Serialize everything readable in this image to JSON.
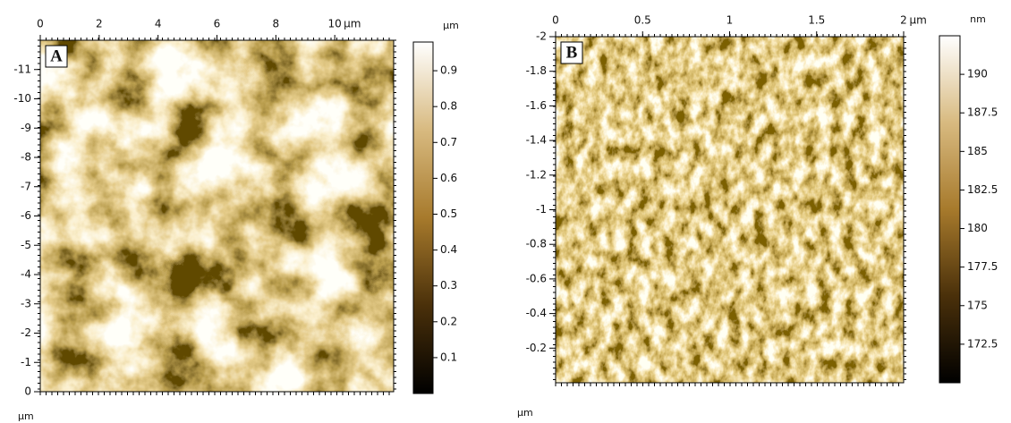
{
  "panels": [
    {
      "label": "A",
      "x_unit": "µm",
      "y_unit": "µm",
      "xlim": [
        0,
        12
      ],
      "xticks": [
        0,
        2,
        4,
        6,
        8,
        10
      ],
      "ylim": [
        0,
        -12
      ],
      "yticks": [
        0,
        -1,
        -2,
        -3,
        -4,
        -5,
        -6,
        -7,
        -8,
        -9,
        -10,
        -11
      ],
      "colorbar": {
        "unit": "µm",
        "lim": [
          0,
          0.98
        ],
        "ticks": [
          0.1,
          0.2,
          0.3,
          0.4,
          0.5,
          0.6,
          0.7,
          0.8,
          0.9
        ]
      }
    },
    {
      "label": "B",
      "x_unit": "µm",
      "y_unit": "µm",
      "xlim": [
        0,
        2
      ],
      "xticks": [
        0,
        0.5,
        1,
        1.5,
        2
      ],
      "ylim": [
        0,
        -2
      ],
      "yticks": [
        -0.2,
        -0.4,
        -0.6,
        -0.8,
        -1,
        -1.2,
        -1.4,
        -1.6,
        -1.8,
        -2
      ],
      "colorbar": {
        "unit": "nm",
        "lim": [
          170,
          192.5
        ],
        "ticks": [
          172.5,
          175,
          177.5,
          180,
          182.5,
          185,
          187.5,
          190
        ]
      }
    }
  ]
}
